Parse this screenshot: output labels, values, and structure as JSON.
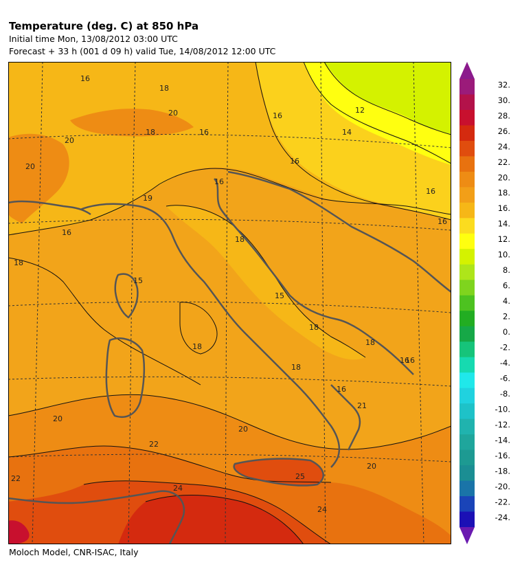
{
  "header": {
    "title": "Temperature (deg. C) at 850 hPa",
    "initial_time": "Initial time  Mon, 13/08/2012  03:00 UTC",
    "forecast": "Forecast  +  33 h  (001 d 09 h)  valid Tue, 14/08/2012 12:00 UTC"
  },
  "footer": {
    "credit": "Moloch Model, CNR-ISAC, Italy"
  },
  "colorbar": {
    "levels": [
      {
        "label": "32.",
        "color": "#9b1b7a"
      },
      {
        "label": "30.",
        "color": "#b3124a"
      },
      {
        "label": "28.",
        "color": "#c8102e"
      },
      {
        "label": "26.",
        "color": "#d42a0f"
      },
      {
        "label": "24.",
        "color": "#e04d0e"
      },
      {
        "label": "22.",
        "color": "#e8720f"
      },
      {
        "label": "20.",
        "color": "#ee8c14"
      },
      {
        "label": "18.",
        "color": "#f29f18"
      },
      {
        "label": "16.",
        "color": "#f6b717"
      },
      {
        "label": "14.",
        "color": "#fbdc1f"
      },
      {
        "label": "12.",
        "color": "#ffff10"
      },
      {
        "label": "10.",
        "color": "#d4f200"
      },
      {
        "label": "8.",
        "color": "#aee51a"
      },
      {
        "label": "6.",
        "color": "#7fd41e"
      },
      {
        "label": "4.",
        "color": "#4dc220"
      },
      {
        "label": "2.",
        "color": "#22ad22"
      },
      {
        "label": "0.",
        "color": "#16a847"
      },
      {
        "label": "-2.",
        "color": "#16c47a"
      },
      {
        "label": "-4.",
        "color": "#16dab0"
      },
      {
        "label": "-6.",
        "color": "#20e8ea"
      },
      {
        "label": "-8.",
        "color": "#20d2df"
      },
      {
        "label": "-10.",
        "color": "#1ec2c8"
      },
      {
        "label": "-12.",
        "color": "#20b3ae"
      },
      {
        "label": "-14.",
        "color": "#1fa69c"
      },
      {
        "label": "-16.",
        "color": "#1d9a92"
      },
      {
        "label": "-18.",
        "color": "#1b8e93"
      },
      {
        "label": "-20.",
        "color": "#1a74a8"
      },
      {
        "label": "-22.",
        "color": "#1a44b8"
      },
      {
        "label": "-24.",
        "color": "#1b10b5"
      }
    ],
    "arrow_top_color": "#8b1a8c",
    "arrow_bottom_color": "#6a1ab0"
  },
  "map": {
    "contour_labels": [
      "16",
      "18",
      "20",
      "18",
      "16",
      "16",
      "20",
      "20",
      "16",
      "14",
      "12",
      "19",
      "16",
      "16",
      "18",
      "18",
      "15",
      "15",
      "18",
      "18",
      "18",
      "16",
      "16",
      "16",
      "21",
      "20",
      "20",
      "22",
      "22",
      "24",
      "25",
      "24",
      "20",
      "16",
      "18",
      "16"
    ]
  }
}
